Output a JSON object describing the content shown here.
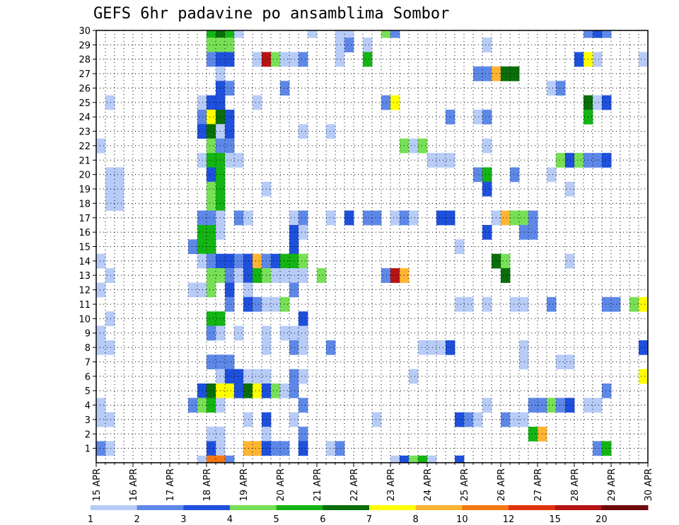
{
  "chart_data": {
    "type": "heatmap",
    "title": "GEFS 6hr padavine po ansamblima Sombor",
    "x_ticks": [
      "15 APR",
      "16 APR",
      "17 APR",
      "18 APR",
      "19 APR",
      "20 APR",
      "21 APR",
      "22 APR",
      "23 APR",
      "24 APR",
      "25 APR",
      "26 APR",
      "27 APR",
      "28 APR",
      "29 APR",
      "30 APR"
    ],
    "y_ticks": [
      "1",
      "2",
      "3",
      "4",
      "5",
      "6",
      "7",
      "8",
      "9",
      "10",
      "11",
      "12",
      "13",
      "14",
      "15",
      "16",
      "17",
      "18",
      "19",
      "20",
      "21",
      "22",
      "23",
      "24",
      "25",
      "26",
      "27",
      "28",
      "29",
      "30"
    ],
    "y_range": [
      0,
      30
    ],
    "x_steps": 60,
    "grid": "dotted",
    "legend": {
      "position": "bottom",
      "labels": [
        "1",
        "2",
        "3",
        "4",
        "5",
        "6",
        "7",
        "8",
        "10",
        "12",
        "15",
        "20"
      ],
      "colors": [
        "#b8ccf8",
        "#5e88e8",
        "#1e50dc",
        "#78e056",
        "#14b414",
        "#0a6e0a",
        "#ffff00",
        "#ffb432",
        "#f57814",
        "#e1330f",
        "#b41414",
        "#6e0a0a"
      ]
    },
    "colors": [
      "#b8ccf8",
      "#5e88e8",
      "#1e50dc",
      "#78e056",
      "#14b414",
      "#0a6e0a",
      "#ffff00",
      "#ffb432",
      "#f57814",
      "#e1330f",
      "#b41414",
      "#6e0a0a"
    ],
    "cells": [
      [
        12,
        30,
        1
      ],
      [
        13,
        30,
        3
      ],
      [
        14,
        30,
        2
      ],
      [
        15,
        30,
        2
      ],
      [
        16,
        30,
        2
      ],
      [
        17,
        30,
        2
      ],
      [
        24,
        30,
        1
      ],
      [
        25,
        30,
        1
      ],
      [
        12,
        29,
        4
      ],
      [
        13,
        29,
        5
      ],
      [
        14,
        29,
        4
      ],
      [
        15,
        29,
        0
      ],
      [
        23,
        29,
        0
      ],
      [
        26,
        29,
        0
      ],
      [
        27,
        29,
        0
      ],
      [
        31,
        29,
        3
      ],
      [
        32,
        29,
        1
      ],
      [
        53,
        29,
        1
      ],
      [
        54,
        29,
        2
      ],
      [
        55,
        29,
        1
      ],
      [
        12,
        28,
        3
      ],
      [
        13,
        28,
        3
      ],
      [
        14,
        28,
        3
      ],
      [
        26,
        28,
        0
      ],
      [
        27,
        28,
        1
      ],
      [
        29,
        28,
        0
      ],
      [
        42,
        28,
        0
      ],
      [
        12,
        27,
        1
      ],
      [
        13,
        27,
        2
      ],
      [
        14,
        27,
        2
      ],
      [
        17,
        27,
        0
      ],
      [
        18,
        27,
        10
      ],
      [
        19,
        27,
        3
      ],
      [
        20,
        27,
        0
      ],
      [
        21,
        27,
        0
      ],
      [
        22,
        27,
        1
      ],
      [
        26,
        27,
        0
      ],
      [
        29,
        27,
        4
      ],
      [
        52,
        27,
        2
      ],
      [
        53,
        27,
        6
      ],
      [
        54,
        27,
        0
      ],
      [
        59,
        27,
        0
      ],
      [
        13,
        26,
        0
      ],
      [
        41,
        26,
        1
      ],
      [
        42,
        26,
        1
      ],
      [
        43,
        26,
        7
      ],
      [
        44,
        26,
        5
      ],
      [
        45,
        26,
        5
      ],
      [
        13,
        25,
        2
      ],
      [
        14,
        25,
        1
      ],
      [
        20,
        25,
        1
      ],
      [
        49,
        25,
        0
      ],
      [
        50,
        25,
        1
      ],
      [
        1,
        24,
        0
      ],
      [
        11,
        24,
        0
      ],
      [
        12,
        24,
        2
      ],
      [
        13,
        24,
        2
      ],
      [
        17,
        24,
        0
      ],
      [
        31,
        24,
        1
      ],
      [
        32,
        24,
        6
      ],
      [
        53,
        24,
        5
      ],
      [
        54,
        24,
        0
      ],
      [
        55,
        24,
        2
      ],
      [
        11,
        23,
        1
      ],
      [
        12,
        23,
        6
      ],
      [
        13,
        23,
        5
      ],
      [
        14,
        23,
        2
      ],
      [
        38,
        23,
        1
      ],
      [
        41,
        23,
        0
      ],
      [
        42,
        23,
        1
      ],
      [
        53,
        23,
        4
      ],
      [
        11,
        22,
        2
      ],
      [
        12,
        22,
        5
      ],
      [
        13,
        22,
        0
      ],
      [
        14,
        22,
        2
      ],
      [
        22,
        22,
        0
      ],
      [
        25,
        22,
        0
      ],
      [
        0,
        21,
        0
      ],
      [
        12,
        21,
        3
      ],
      [
        13,
        21,
        1
      ],
      [
        14,
        21,
        1
      ],
      [
        33,
        21,
        3
      ],
      [
        34,
        21,
        0
      ],
      [
        35,
        21,
        3
      ],
      [
        42,
        21,
        0
      ],
      [
        11,
        20,
        0
      ],
      [
        12,
        20,
        4
      ],
      [
        13,
        20,
        4
      ],
      [
        14,
        20,
        0
      ],
      [
        15,
        20,
        0
      ],
      [
        36,
        20,
        0
      ],
      [
        37,
        20,
        0
      ],
      [
        38,
        20,
        0
      ],
      [
        50,
        20,
        3
      ],
      [
        51,
        20,
        2
      ],
      [
        52,
        20,
        3
      ],
      [
        53,
        20,
        1
      ],
      [
        54,
        20,
        1
      ],
      [
        55,
        20,
        2
      ],
      [
        1,
        19,
        0
      ],
      [
        2,
        19,
        0
      ],
      [
        12,
        19,
        2
      ],
      [
        13,
        19,
        4
      ],
      [
        41,
        19,
        1
      ],
      [
        42,
        19,
        4
      ],
      [
        45,
        19,
        1
      ],
      [
        49,
        19,
        0
      ],
      [
        1,
        18,
        0
      ],
      [
        2,
        18,
        0
      ],
      [
        12,
        18,
        3
      ],
      [
        13,
        18,
        4
      ],
      [
        18,
        18,
        0
      ],
      [
        42,
        18,
        2
      ],
      [
        51,
        18,
        0
      ],
      [
        1,
        17,
        0
      ],
      [
        2,
        17,
        0
      ],
      [
        12,
        17,
        3
      ],
      [
        13,
        17,
        4
      ],
      [
        11,
        16,
        1
      ],
      [
        12,
        16,
        1
      ],
      [
        13,
        16,
        0
      ],
      [
        15,
        16,
        1
      ],
      [
        16,
        16,
        0
      ],
      [
        21,
        16,
        0
      ],
      [
        22,
        16,
        1
      ],
      [
        25,
        16,
        0
      ],
      [
        27,
        16,
        2
      ],
      [
        29,
        16,
        1
      ],
      [
        30,
        16,
        1
      ],
      [
        32,
        16,
        0
      ],
      [
        33,
        16,
        1
      ],
      [
        34,
        16,
        0
      ],
      [
        37,
        16,
        2
      ],
      [
        38,
        16,
        2
      ],
      [
        43,
        16,
        0
      ],
      [
        44,
        16,
        7
      ],
      [
        45,
        16,
        3
      ],
      [
        46,
        16,
        3
      ],
      [
        47,
        16,
        1
      ],
      [
        11,
        15,
        4
      ],
      [
        12,
        15,
        4
      ],
      [
        13,
        15,
        0
      ],
      [
        21,
        15,
        2
      ],
      [
        22,
        15,
        0
      ],
      [
        42,
        15,
        2
      ],
      [
        46,
        15,
        1
      ],
      [
        47,
        15,
        1
      ],
      [
        10,
        14,
        1
      ],
      [
        11,
        14,
        4
      ],
      [
        12,
        14,
        4
      ],
      [
        21,
        14,
        2
      ],
      [
        39,
        14,
        0
      ],
      [
        0,
        13,
        0
      ],
      [
        11,
        13,
        0
      ],
      [
        12,
        13,
        1
      ],
      [
        13,
        13,
        2
      ],
      [
        14,
        13,
        2
      ],
      [
        15,
        13,
        1
      ],
      [
        16,
        13,
        2
      ],
      [
        17,
        13,
        7
      ],
      [
        18,
        13,
        1
      ],
      [
        19,
        13,
        2
      ],
      [
        20,
        13,
        4
      ],
      [
        21,
        13,
        4
      ],
      [
        22,
        13,
        3
      ],
      [
        43,
        13,
        5
      ],
      [
        44,
        13,
        3
      ],
      [
        51,
        13,
        0
      ],
      [
        1,
        12,
        0
      ],
      [
        12,
        12,
        3
      ],
      [
        13,
        12,
        3
      ],
      [
        14,
        12,
        1
      ],
      [
        15,
        12,
        0
      ],
      [
        16,
        12,
        2
      ],
      [
        17,
        12,
        4
      ],
      [
        18,
        12,
        3
      ],
      [
        19,
        12,
        0
      ],
      [
        20,
        12,
        0
      ],
      [
        21,
        12,
        0
      ],
      [
        22,
        12,
        0
      ],
      [
        24,
        12,
        3
      ],
      [
        31,
        12,
        1
      ],
      [
        32,
        12,
        10
      ],
      [
        33,
        12,
        7
      ],
      [
        44,
        12,
        5
      ],
      [
        0,
        11,
        0
      ],
      [
        10,
        11,
        0
      ],
      [
        11,
        11,
        0
      ],
      [
        12,
        11,
        3
      ],
      [
        14,
        11,
        2
      ],
      [
        16,
        11,
        0
      ],
      [
        21,
        11,
        1
      ],
      [
        14,
        10,
        1
      ],
      [
        16,
        10,
        2
      ],
      [
        17,
        10,
        1
      ],
      [
        18,
        10,
        0
      ],
      [
        19,
        10,
        0
      ],
      [
        20,
        10,
        3
      ],
      [
        39,
        10,
        0
      ],
      [
        40,
        10,
        0
      ],
      [
        42,
        10,
        0
      ],
      [
        45,
        10,
        0
      ],
      [
        46,
        10,
        0
      ],
      [
        49,
        10,
        1
      ],
      [
        55,
        10,
        1
      ],
      [
        56,
        10,
        1
      ],
      [
        58,
        10,
        3
      ],
      [
        59,
        10,
        6
      ],
      [
        1,
        9,
        0
      ],
      [
        12,
        9,
        4
      ],
      [
        13,
        9,
        4
      ],
      [
        22,
        9,
        2
      ],
      [
        0,
        8,
        0
      ],
      [
        12,
        8,
        1
      ],
      [
        13,
        8,
        0
      ],
      [
        15,
        8,
        0
      ],
      [
        18,
        8,
        0
      ],
      [
        20,
        8,
        0
      ],
      [
        21,
        8,
        0
      ],
      [
        22,
        8,
        0
      ],
      [
        0,
        7,
        0
      ],
      [
        1,
        7,
        0
      ],
      [
        18,
        7,
        0
      ],
      [
        21,
        7,
        1
      ],
      [
        22,
        7,
        0
      ],
      [
        25,
        7,
        1
      ],
      [
        35,
        7,
        0
      ],
      [
        36,
        7,
        0
      ],
      [
        37,
        7,
        0
      ],
      [
        38,
        7,
        2
      ],
      [
        46,
        7,
        0
      ],
      [
        59,
        7,
        2
      ],
      [
        12,
        6,
        1
      ],
      [
        13,
        6,
        1
      ],
      [
        14,
        6,
        1
      ],
      [
        46,
        6,
        0
      ],
      [
        50,
        6,
        0
      ],
      [
        51,
        6,
        0
      ],
      [
        13,
        5,
        0
      ],
      [
        14,
        5,
        2
      ],
      [
        15,
        5,
        2
      ],
      [
        16,
        5,
        0
      ],
      [
        17,
        5,
        0
      ],
      [
        18,
        5,
        0
      ],
      [
        21,
        5,
        1
      ],
      [
        22,
        5,
        0
      ],
      [
        34,
        5,
        0
      ],
      [
        59,
        5,
        6
      ],
      [
        60,
        5,
        1
      ],
      [
        11,
        4,
        2
      ],
      [
        12,
        4,
        5
      ],
      [
        13,
        4,
        6
      ],
      [
        14,
        4,
        6
      ],
      [
        15,
        4,
        2
      ],
      [
        16,
        4,
        5
      ],
      [
        17,
        4,
        6
      ],
      [
        18,
        4,
        2
      ],
      [
        19,
        4,
        3
      ],
      [
        20,
        4,
        0
      ],
      [
        21,
        4,
        1
      ],
      [
        55,
        4,
        1
      ],
      [
        0,
        3,
        0
      ],
      [
        10,
        3,
        1
      ],
      [
        11,
        3,
        3
      ],
      [
        12,
        3,
        4
      ],
      [
        13,
        3,
        0
      ],
      [
        22,
        3,
        1
      ],
      [
        42,
        3,
        0
      ],
      [
        47,
        3,
        1
      ],
      [
        48,
        3,
        1
      ],
      [
        49,
        3,
        3
      ],
      [
        50,
        3,
        1
      ],
      [
        51,
        3,
        2
      ],
      [
        53,
        3,
        0
      ],
      [
        54,
        3,
        0
      ],
      [
        0,
        2,
        0
      ],
      [
        1,
        2,
        0
      ],
      [
        16,
        2,
        0
      ],
      [
        18,
        2,
        2
      ],
      [
        21,
        2,
        0
      ],
      [
        30,
        2,
        0
      ],
      [
        39,
        2,
        2
      ],
      [
        40,
        2,
        1
      ],
      [
        41,
        2,
        0
      ],
      [
        44,
        2,
        1
      ],
      [
        45,
        2,
        0
      ],
      [
        46,
        2,
        0
      ],
      [
        60,
        2,
        0
      ],
      [
        12,
        1,
        0
      ],
      [
        13,
        1,
        0
      ],
      [
        18,
        1,
        0
      ],
      [
        22,
        1,
        1
      ],
      [
        47,
        1,
        4
      ],
      [
        48,
        1,
        7
      ],
      [
        0,
        0,
        1
      ],
      [
        1,
        0,
        0
      ],
      [
        12,
        0,
        2
      ],
      [
        13,
        0,
        0
      ],
      [
        16,
        0,
        7
      ],
      [
        17,
        0,
        7
      ],
      [
        18,
        0,
        2
      ],
      [
        19,
        0,
        1
      ],
      [
        20,
        0,
        1
      ],
      [
        22,
        0,
        2
      ],
      [
        25,
        0,
        0
      ],
      [
        26,
        0,
        1
      ],
      [
        54,
        0,
        1
      ],
      [
        55,
        0,
        4
      ],
      [
        11,
        -1,
        0
      ],
      [
        12,
        -1,
        8
      ],
      [
        13,
        -1,
        8
      ],
      [
        14,
        -1,
        1
      ],
      [
        32,
        -1,
        0
      ],
      [
        33,
        -1,
        2
      ],
      [
        34,
        -1,
        3
      ],
      [
        35,
        -1,
        4
      ],
      [
        36,
        -1,
        0
      ],
      [
        39,
        -1,
        2
      ]
    ]
  }
}
